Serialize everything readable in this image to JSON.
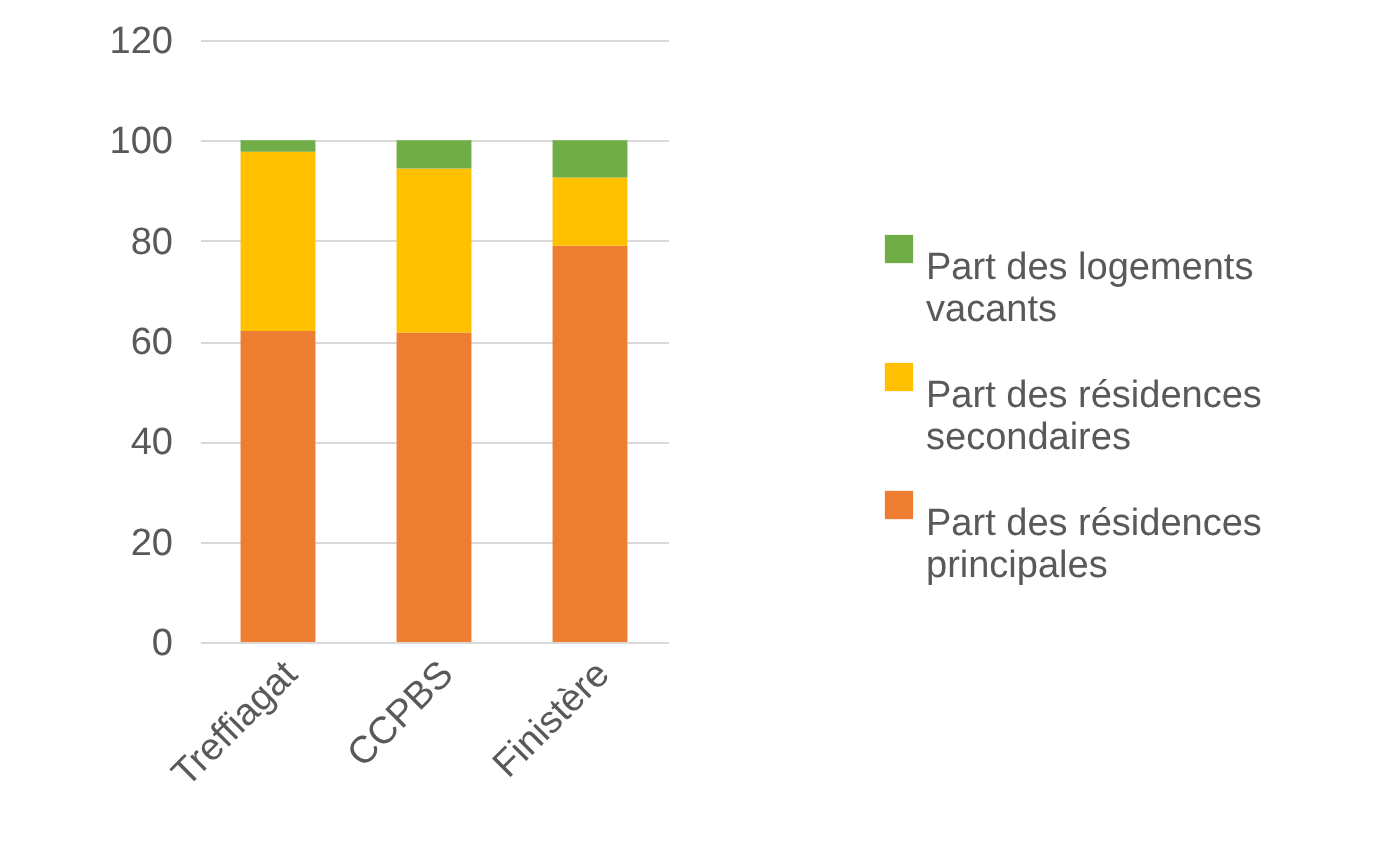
{
  "chart_data": {
    "type": "bar",
    "stacked": true,
    "categories": [
      "Treffiagat",
      "CCPBS",
      "Finistère"
    ],
    "series": [
      {
        "name": "Part des résidences principales",
        "color": "#ed7d31",
        "values": [
          62.0,
          61.7,
          79.0
        ]
      },
      {
        "name": "Part des résidences secondaires",
        "color": "#ffc000",
        "values": [
          35.7,
          32.7,
          13.6
        ]
      },
      {
        "name": "Part des logements vacants",
        "color": "#70ad47",
        "values": [
          2.3,
          5.6,
          7.4
        ]
      }
    ],
    "ylim": [
      0,
      120
    ],
    "yticks": [
      0,
      20,
      40,
      60,
      80,
      100,
      120
    ],
    "grid": "y",
    "legend": "right"
  }
}
